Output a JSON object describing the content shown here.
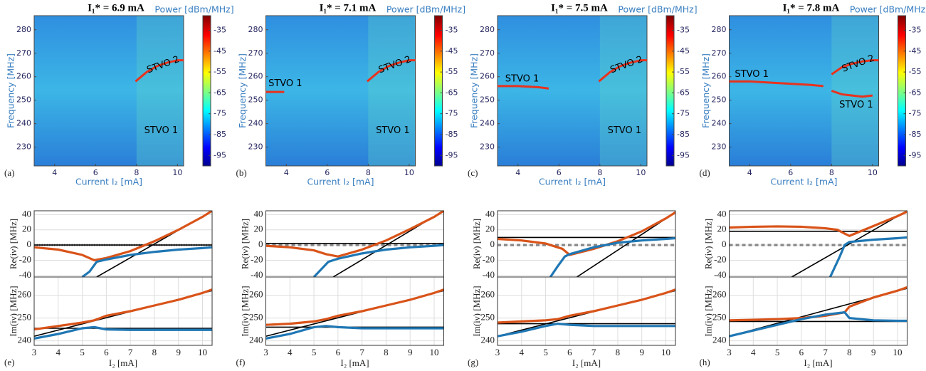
{
  "chart_data": [
    {
      "type": "heatmap",
      "title": "I₁* = 6.9 mA",
      "label": "(a)",
      "colorbar_label": "Power [dBm/MHz]",
      "clim": [
        -100,
        -28
      ],
      "cticks": [
        -35,
        -45,
        -55,
        -65,
        -75,
        -85,
        -95
      ],
      "xlabel": "Current I₂   [mA]",
      "ylabel": "Frequency [MHz]",
      "xlim": [
        3,
        10.3
      ],
      "xticks": [
        4,
        6,
        8,
        10
      ],
      "ylim": [
        222,
        286
      ],
      "yticks": [
        230,
        240,
        250,
        260,
        270,
        280
      ],
      "annotations": [
        "STVO 2",
        "STVO 1"
      ],
      "series": [
        {
          "color": "#e8321e",
          "x": [
            7.95,
            8.5,
            9,
            9.5,
            10,
            10.3
          ],
          "values": [
            258,
            262,
            264.5,
            266,
            267,
            267
          ]
        }
      ]
    },
    {
      "type": "heatmap",
      "title": "I₁* = 7.1 mA",
      "label": "(b)",
      "colorbar_label": "Power [dBm/MHz]",
      "clim": [
        -100,
        -28
      ],
      "cticks": [
        -35,
        -45,
        -55,
        -65,
        -75,
        -85,
        -95
      ],
      "xlabel": "Current I₂   [mA]",
      "ylabel": "Frequency [MHz]",
      "xlim": [
        3,
        10.3
      ],
      "xticks": [
        4,
        6,
        8,
        10
      ],
      "ylim": [
        222,
        286
      ],
      "yticks": [
        230,
        240,
        250,
        260,
        270,
        280
      ],
      "annotations": [
        "STVO 1",
        "STVO 2",
        "STVO 1"
      ],
      "series": [
        {
          "color": "#e8321e",
          "x": [
            3,
            3.9
          ],
          "values": [
            253.5,
            253.5
          ]
        },
        {
          "color": "#e8321e",
          "x": [
            7.95,
            8.5,
            9,
            9.5,
            10,
            10.3
          ],
          "values": [
            258,
            262,
            264.5,
            266,
            267,
            267
          ]
        }
      ]
    },
    {
      "type": "heatmap",
      "title": "I₁* = 7.5 mA",
      "label": "(c)",
      "colorbar_label": "Power [dBm/MHz]",
      "clim": [
        -100,
        -28
      ],
      "cticks": [
        -35,
        -45,
        -55,
        -65,
        -75,
        -85,
        -95
      ],
      "xlabel": "Current I₂   [mA]",
      "ylabel": "Frequency [MHz]",
      "xlim": [
        3,
        10.3
      ],
      "xticks": [
        4,
        6,
        8,
        10
      ],
      "ylim": [
        222,
        286
      ],
      "yticks": [
        230,
        240,
        250,
        260,
        270,
        280
      ],
      "annotations": [
        "STVO 1",
        "STVO 2",
        "STVO 1"
      ],
      "series": [
        {
          "color": "#e8321e",
          "x": [
            3,
            4,
            5,
            5.5
          ],
          "values": [
            256,
            256,
            255.5,
            255
          ]
        },
        {
          "color": "#e8321e",
          "x": [
            7.95,
            8.5,
            9,
            9.5,
            10,
            10.3
          ],
          "values": [
            258,
            262,
            264.5,
            266,
            267,
            267
          ]
        }
      ]
    },
    {
      "type": "heatmap",
      "title": "I₁* = 7.8 mA",
      "label": "(d)",
      "colorbar_label": "Power [dBm/MHz]",
      "clim": [
        -100,
        -28
      ],
      "cticks": [
        -35,
        -45,
        -55,
        -65,
        -75,
        -85,
        -95
      ],
      "xlabel": "Current I₂   [mA]",
      "ylabel": "Frequency [MHz]",
      "xlim": [
        3,
        10.3
      ],
      "xticks": [
        4,
        6,
        8,
        10
      ],
      "ylim": [
        222,
        286
      ],
      "yticks": [
        230,
        240,
        250,
        260,
        270,
        280
      ],
      "annotations": [
        "STVO 1",
        "STVO 2",
        "STVO 1"
      ],
      "series": [
        {
          "color": "#e8321e",
          "x": [
            3,
            4,
            5,
            6,
            7,
            7.6
          ],
          "values": [
            258,
            258,
            257.5,
            257,
            256.5,
            256
          ]
        },
        {
          "color": "#e8321e",
          "x": [
            8,
            8.5,
            9,
            9.5,
            10,
            10.3
          ],
          "values": [
            261,
            264,
            265.5,
            266.5,
            267,
            267
          ]
        },
        {
          "color": "#e8321e",
          "x": [
            8,
            8.5,
            9,
            9.5,
            10
          ],
          "values": [
            254,
            252.5,
            252,
            251.5,
            252
          ]
        }
      ]
    },
    {
      "type": "line",
      "ylabel": "Re(iν) [MHz]",
      "xlim": [
        3,
        10.4
      ],
      "ylim": [
        -42,
        45
      ],
      "yticks": [
        -40,
        -20,
        0,
        20,
        40
      ],
      "grid": true,
      "series": [
        {
          "color": "#888888",
          "dash": "dotted",
          "x": [
            3,
            10.4
          ],
          "values": [
            0,
            0
          ]
        },
        {
          "color": "#000000",
          "x": [
            3,
            10.4
          ],
          "values": [
            0,
            0
          ]
        },
        {
          "color": "#000000",
          "x": [
            5.6,
            10.3
          ],
          "values": [
            -42,
            43
          ]
        },
        {
          "color": "#d95319",
          "x": [
            3,
            4,
            5,
            5.5,
            6,
            7,
            8,
            9,
            10,
            10.4
          ],
          "values": [
            -3,
            -6,
            -13,
            -20,
            -17,
            -8,
            5,
            20,
            37,
            45
          ]
        },
        {
          "color": "#1f77b4",
          "x": [
            5,
            5.3,
            5.6,
            6,
            7,
            8,
            9,
            10,
            10.4
          ],
          "values": [
            -42,
            -35,
            -22,
            -19,
            -13,
            -9,
            -6,
            -4,
            -3
          ]
        }
      ]
    },
    {
      "type": "line",
      "label": "(e)",
      "ylabel": "Im(iν) [MHz]",
      "xlabel": "I₂ [mA]",
      "xlim": [
        3,
        10.4
      ],
      "ylim": [
        238,
        268
      ],
      "xticks": [
        3,
        4,
        5,
        6,
        7,
        8,
        9,
        10
      ],
      "yticks": [
        240,
        250,
        260
      ],
      "grid": true,
      "series": [
        {
          "color": "#000000",
          "x": [
            3,
            10.4
          ],
          "values": [
            245.5,
            245.5
          ]
        },
        {
          "color": "#000000",
          "x": [
            3,
            10.4
          ],
          "values": [
            242,
            262
          ]
        },
        {
          "color": "#d95319",
          "x": [
            3,
            4,
            5,
            5.5,
            6,
            7,
            8,
            9,
            10,
            10.4
          ],
          "values": [
            245,
            246.5,
            248,
            249,
            251,
            253,
            255.5,
            258,
            261,
            262.5
          ]
        },
        {
          "color": "#1f77b4",
          "x": [
            3,
            4,
            5,
            5.5,
            6,
            7,
            8,
            9,
            10,
            10.4
          ],
          "values": [
            241,
            243,
            245.5,
            246,
            245,
            244.8,
            244.8,
            244.8,
            244.8,
            244.8
          ]
        }
      ]
    },
    {
      "type": "line",
      "ylabel": "Re(iν) [MHz]",
      "xlim": [
        3,
        10.4
      ],
      "ylim": [
        -42,
        45
      ],
      "yticks": [
        -40,
        -20,
        0,
        20,
        40
      ],
      "grid": true,
      "series": [
        {
          "color": "#888888",
          "dash": "dashed",
          "x": [
            3,
            10.4
          ],
          "values": [
            0,
            0
          ]
        },
        {
          "color": "#000000",
          "x": [
            3,
            10.4
          ],
          "values": [
            2,
            2
          ]
        },
        {
          "color": "#000000",
          "x": [
            5.8,
            10.4
          ],
          "values": [
            -42,
            45
          ]
        },
        {
          "color": "#d95319",
          "x": [
            3,
            4,
            5,
            5.5,
            6,
            7,
            8,
            9,
            10,
            10.4
          ],
          "values": [
            -1,
            -3,
            -7,
            -12,
            -15,
            -6,
            6,
            21,
            37,
            45
          ]
        },
        {
          "color": "#1f77b4",
          "x": [
            5,
            5.3,
            5.6,
            6,
            7,
            8,
            9,
            10,
            10.4
          ],
          "values": [
            -42,
            -32,
            -22,
            -18,
            -11,
            -6,
            -3,
            -1,
            0
          ]
        }
      ]
    },
    {
      "type": "line",
      "label": "(f)",
      "ylabel": "Im(iν) [MHz]",
      "xlabel": "I₂ [mA]",
      "xlim": [
        3,
        10.4
      ],
      "ylim": [
        238,
        268
      ],
      "xticks": [
        3,
        4,
        5,
        6,
        7,
        8,
        9,
        10
      ],
      "yticks": [
        240,
        250,
        260
      ],
      "grid": true,
      "series": [
        {
          "color": "#000000",
          "x": [
            3,
            10.4
          ],
          "values": [
            246,
            246
          ]
        },
        {
          "color": "#000000",
          "x": [
            3,
            10.4
          ],
          "values": [
            242,
            262
          ]
        },
        {
          "color": "#d95319",
          "x": [
            3,
            4,
            5,
            5.5,
            6,
            7,
            8,
            9,
            10,
            10.4
          ],
          "values": [
            247,
            247.5,
            248.5,
            249.5,
            251,
            253,
            255.5,
            258,
            261,
            262.5
          ]
        },
        {
          "color": "#1f77b4",
          "x": [
            3,
            4,
            5,
            5.5,
            6,
            7,
            8,
            9,
            10,
            10.4
          ],
          "values": [
            241,
            243,
            246,
            246.5,
            246,
            245.5,
            245.5,
            245.5,
            245.5,
            245.5
          ]
        }
      ]
    },
    {
      "type": "line",
      "ylabel": "Re(iν) [MHz]",
      "xlim": [
        3,
        10.4
      ],
      "ylim": [
        -42,
        45
      ],
      "yticks": [
        -40,
        -20,
        0,
        20,
        40
      ],
      "grid": true,
      "series": [
        {
          "color": "#888888",
          "dash": "dashed",
          "x": [
            3,
            10.4
          ],
          "values": [
            0,
            0
          ]
        },
        {
          "color": "#000000",
          "x": [
            3,
            10.4
          ],
          "values": [
            10,
            10
          ]
        },
        {
          "color": "#000000",
          "x": [
            6.3,
            10.4
          ],
          "values": [
            -42,
            43
          ]
        },
        {
          "color": "#d95319",
          "x": [
            3,
            4,
            5,
            5.7,
            6,
            7,
            8,
            9,
            10,
            10.4
          ],
          "values": [
            8,
            6,
            2,
            -5,
            -13,
            -5,
            5,
            18,
            35,
            43
          ]
        },
        {
          "color": "#1f77b4",
          "x": [
            5.2,
            5.5,
            5.8,
            6,
            7,
            8,
            9,
            10,
            10.4
          ],
          "values": [
            -42,
            -28,
            -15,
            -12,
            -3,
            3,
            6,
            8,
            9
          ]
        }
      ]
    },
    {
      "type": "line",
      "label": "(g)",
      "ylabel": "Im(iν) [MHz]",
      "xlabel": "I₂ [mA]",
      "xlim": [
        3,
        10.4
      ],
      "ylim": [
        238,
        268
      ],
      "xticks": [
        3,
        4,
        5,
        6,
        7,
        8,
        9,
        10
      ],
      "yticks": [
        240,
        250,
        260
      ],
      "grid": true,
      "series": [
        {
          "color": "#000000",
          "x": [
            3,
            10.4
          ],
          "values": [
            247.5,
            247.5
          ]
        },
        {
          "color": "#000000",
          "x": [
            3,
            10.4
          ],
          "values": [
            242,
            262
          ]
        },
        {
          "color": "#d95319",
          "x": [
            3,
            4,
            5,
            5.5,
            6,
            7,
            8,
            9,
            10,
            10.4
          ],
          "values": [
            248,
            248.5,
            249,
            249.5,
            251,
            253,
            255.5,
            258,
            261,
            262.5
          ]
        },
        {
          "color": "#1f77b4",
          "x": [
            3,
            4,
            5,
            5.5,
            6,
            7,
            8,
            9,
            10,
            10.4
          ],
          "values": [
            242,
            244,
            246.5,
            247.5,
            247,
            246.5,
            246.5,
            246.5,
            246.5,
            246.5
          ]
        }
      ]
    },
    {
      "type": "line",
      "ylabel": "Re(iν) [MHz]",
      "xlim": [
        3,
        10.4
      ],
      "ylim": [
        -42,
        45
      ],
      "yticks": [
        -40,
        -20,
        0,
        20,
        40
      ],
      "grid": true,
      "series": [
        {
          "color": "#888888",
          "dash": "dashed",
          "x": [
            3,
            10.4
          ],
          "values": [
            0,
            0
          ]
        },
        {
          "color": "#000000",
          "x": [
            3,
            10.4
          ],
          "values": [
            18,
            18
          ]
        },
        {
          "color": "#000000",
          "x": [
            5.6,
            10.4
          ],
          "values": [
            -42,
            45
          ]
        },
        {
          "color": "#d95319",
          "x": [
            3,
            4,
            5,
            6,
            7,
            7.5,
            7.8,
            8,
            9,
            10,
            10.4
          ],
          "values": [
            23,
            24,
            24.5,
            24,
            22,
            20,
            15,
            12,
            25,
            38,
            44
          ]
        },
        {
          "color": "#1f77b4",
          "x": [
            7.2,
            7.6,
            7.8,
            8,
            9,
            10,
            10.4
          ],
          "values": [
            -42,
            -15,
            0,
            4,
            7,
            9,
            10
          ]
        }
      ]
    },
    {
      "type": "line",
      "label": "(h)",
      "ylabel": "Im(iν) [MHz]",
      "xlabel": "I₂ [mA]",
      "xlim": [
        3,
        10.4
      ],
      "ylim": [
        238,
        268
      ],
      "xticks": [
        3,
        4,
        5,
        6,
        7,
        8,
        9,
        10
      ],
      "yticks": [
        240,
        250,
        260
      ],
      "grid": true,
      "series": [
        {
          "color": "#000000",
          "x": [
            3,
            10.4
          ],
          "values": [
            248.5,
            248.5
          ]
        },
        {
          "color": "#000000",
          "x": [
            3,
            10.4
          ],
          "values": [
            242,
            263
          ]
        },
        {
          "color": "#d95319",
          "x": [
            3,
            4,
            5,
            6,
            7,
            7.8,
            8,
            9,
            10,
            10.4
          ],
          "values": [
            249,
            249.2,
            249.5,
            250,
            251,
            252.5,
            255,
            259,
            262,
            263.5
          ]
        },
        {
          "color": "#1f77b4",
          "x": [
            3,
            4,
            5,
            6,
            7,
            7.8,
            8,
            9,
            10,
            10.4
          ],
          "values": [
            242,
            244.5,
            247,
            249.5,
            251.5,
            252.5,
            250,
            249,
            248.8,
            248.8
          ]
        }
      ]
    }
  ]
}
